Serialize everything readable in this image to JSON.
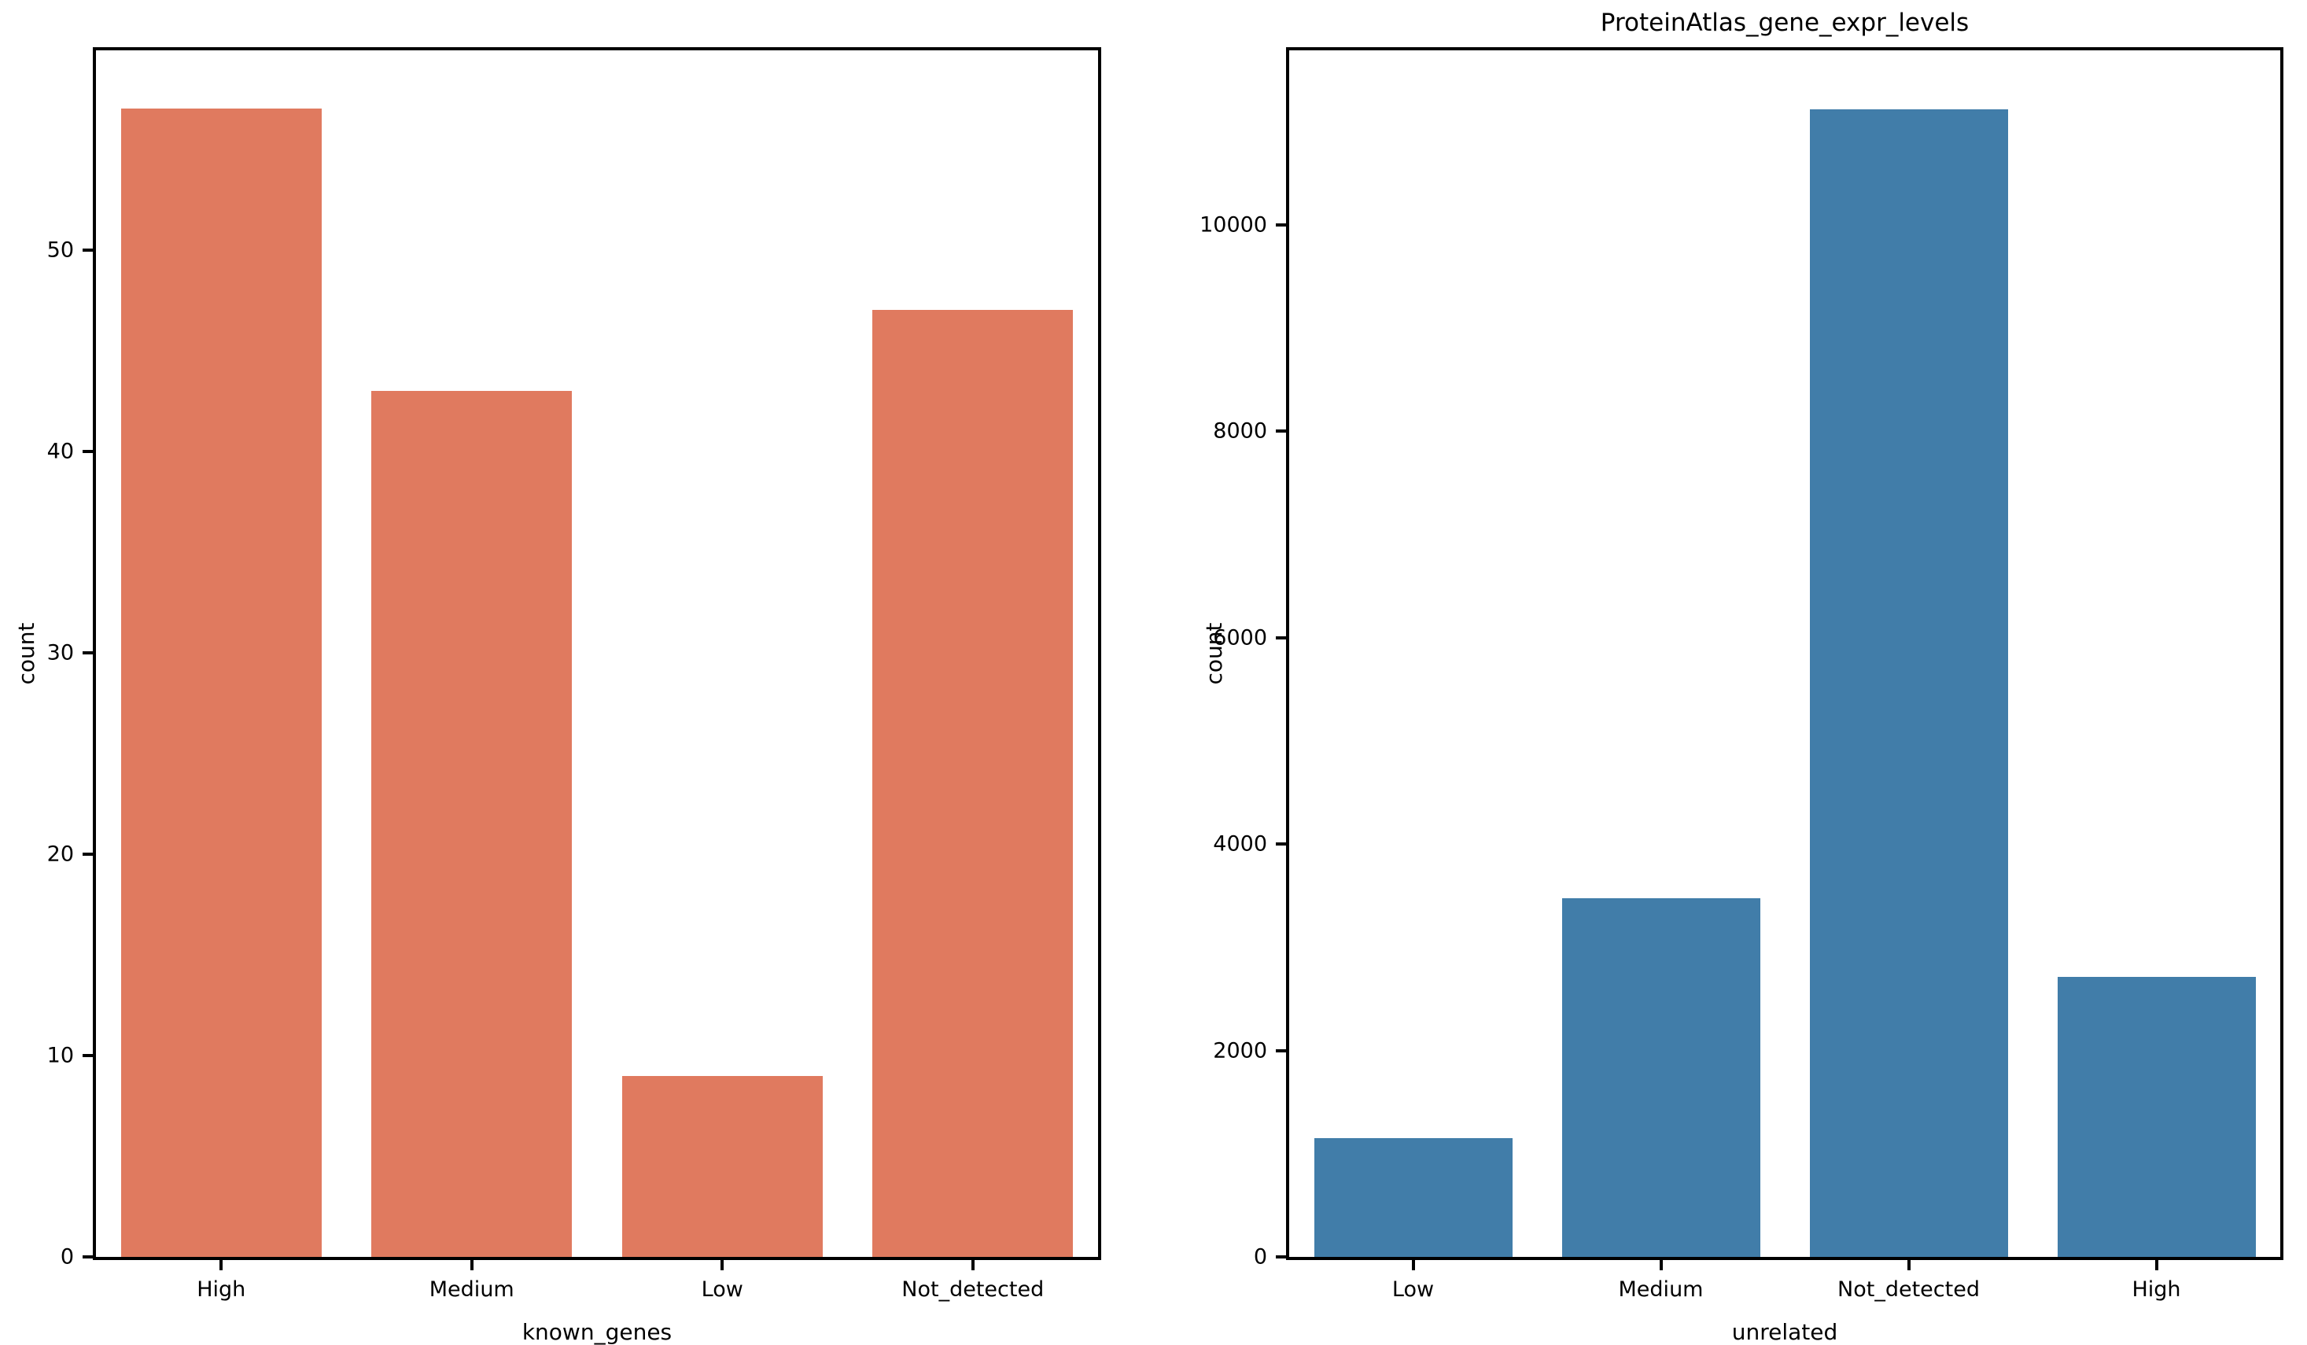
{
  "chart_data": [
    {
      "type": "bar",
      "title": "",
      "xlabel": "known_genes",
      "ylabel": "count",
      "categories": [
        "High",
        "Medium",
        "Low",
        "Not_detected"
      ],
      "values": [
        57,
        43,
        9,
        47
      ],
      "yticks": [
        0,
        10,
        20,
        30,
        40,
        50
      ],
      "ylim": [
        0,
        59.9
      ],
      "bar_color": "#e07a5f",
      "grid": false,
      "legend": "none",
      "bar_width_fraction": 0.8
    },
    {
      "type": "bar",
      "title": "ProteinAtlas_gene_expr_levels",
      "xlabel": "unrelated",
      "ylabel": "count",
      "categories": [
        "Low",
        "Medium",
        "Not_detected",
        "High"
      ],
      "values": [
        1150,
        3475,
        11120,
        2715
      ],
      "yticks": [
        0,
        2000,
        4000,
        6000,
        8000,
        10000
      ],
      "ylim": [
        0,
        11690
      ],
      "bar_color": "#417da9",
      "grid": false,
      "legend": "none",
      "bar_width_fraction": 0.8
    }
  ],
  "figure": {
    "background_color": "#ffffff",
    "spine_color": "#000000"
  }
}
